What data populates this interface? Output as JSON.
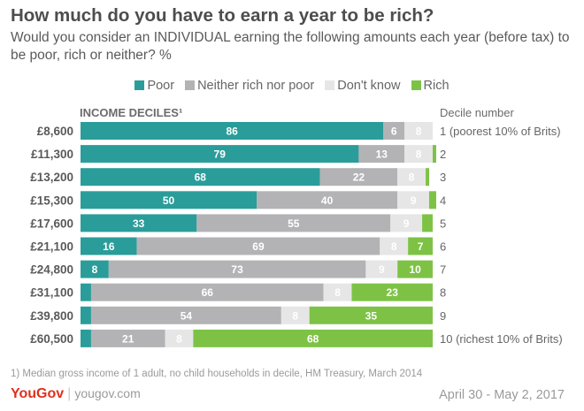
{
  "title": "How much do you have to earn a year to be rich?",
  "subtitle": "Would you consider an INDIVIDUAL earning the following amounts each year (before tax) to be poor, rich or neither? %",
  "column_headers": {
    "income": "INCOME DECILES¹",
    "decile": "Decile number"
  },
  "footnote": "1) Median gross income of 1 adult, no child households in decile, HM Treasury, March 2014",
  "brand": {
    "logo": "YouGov",
    "url": "yougov.com"
  },
  "date": "April 30 - May 2, 2017",
  "chart_data": {
    "type": "bar",
    "stacked": true,
    "orientation": "horizontal",
    "categories": [
      "£8,600",
      "£11,300",
      "£13,200",
      "£15,300",
      "£17,600",
      "£21,100",
      "£24,800",
      "£31,100",
      "£39,800",
      "£60,500"
    ],
    "decile_labels": [
      "1 (poorest 10% of Brits)",
      "2",
      "3",
      "4",
      "5",
      "6",
      "7",
      "8",
      "9",
      "10 (richest 10% of Brits)"
    ],
    "series": [
      {
        "name": "Poor",
        "color": "#2a9d9a",
        "values": [
          86,
          79,
          68,
          50,
          33,
          16,
          8,
          3,
          3,
          3
        ]
      },
      {
        "name": "Neither rich nor poor",
        "color": "#b3b3b5",
        "values": [
          6,
          13,
          22,
          40,
          55,
          69,
          73,
          66,
          54,
          21
        ]
      },
      {
        "name": "Don't know",
        "color": "#e6e6e6",
        "values": [
          8,
          8,
          8,
          9,
          9,
          8,
          9,
          8,
          8,
          8
        ]
      },
      {
        "name": "Rich",
        "color": "#7dc245",
        "values": [
          0,
          1,
          1,
          2,
          3,
          7,
          10,
          23,
          35,
          68
        ]
      }
    ],
    "xlim": [
      0,
      100
    ],
    "legend": "top"
  }
}
